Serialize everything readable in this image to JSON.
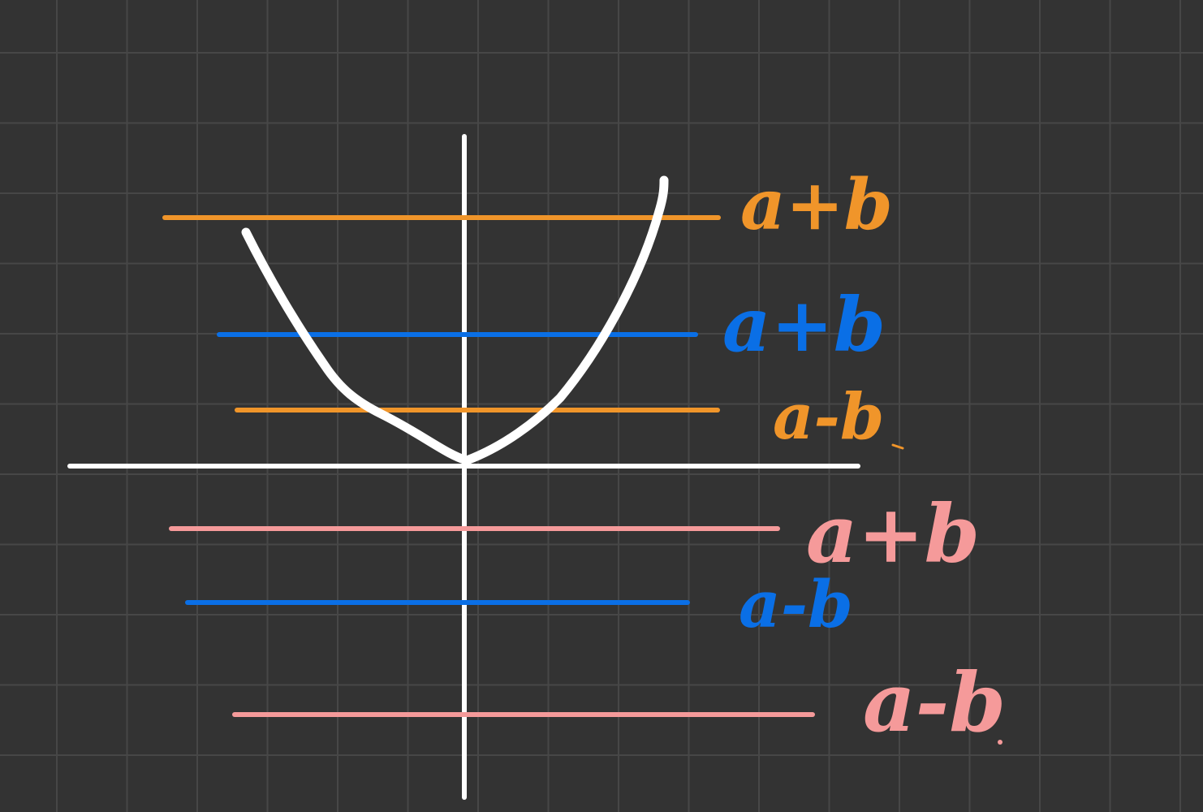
{
  "colors": {
    "background": "#333333",
    "grid": "#474747",
    "axes": "#ffffff",
    "curve": "#ffffff",
    "orange": "#f0952a",
    "blue": "#0a6fe6",
    "pink": "#f59a9a"
  },
  "labels": {
    "orange_top": "a+b",
    "blue_top": "a+b",
    "orange_bottom": "a-b",
    "pink_top": "a+b",
    "blue_bottom": "a-b",
    "pink_bottom": "a-b"
  }
}
